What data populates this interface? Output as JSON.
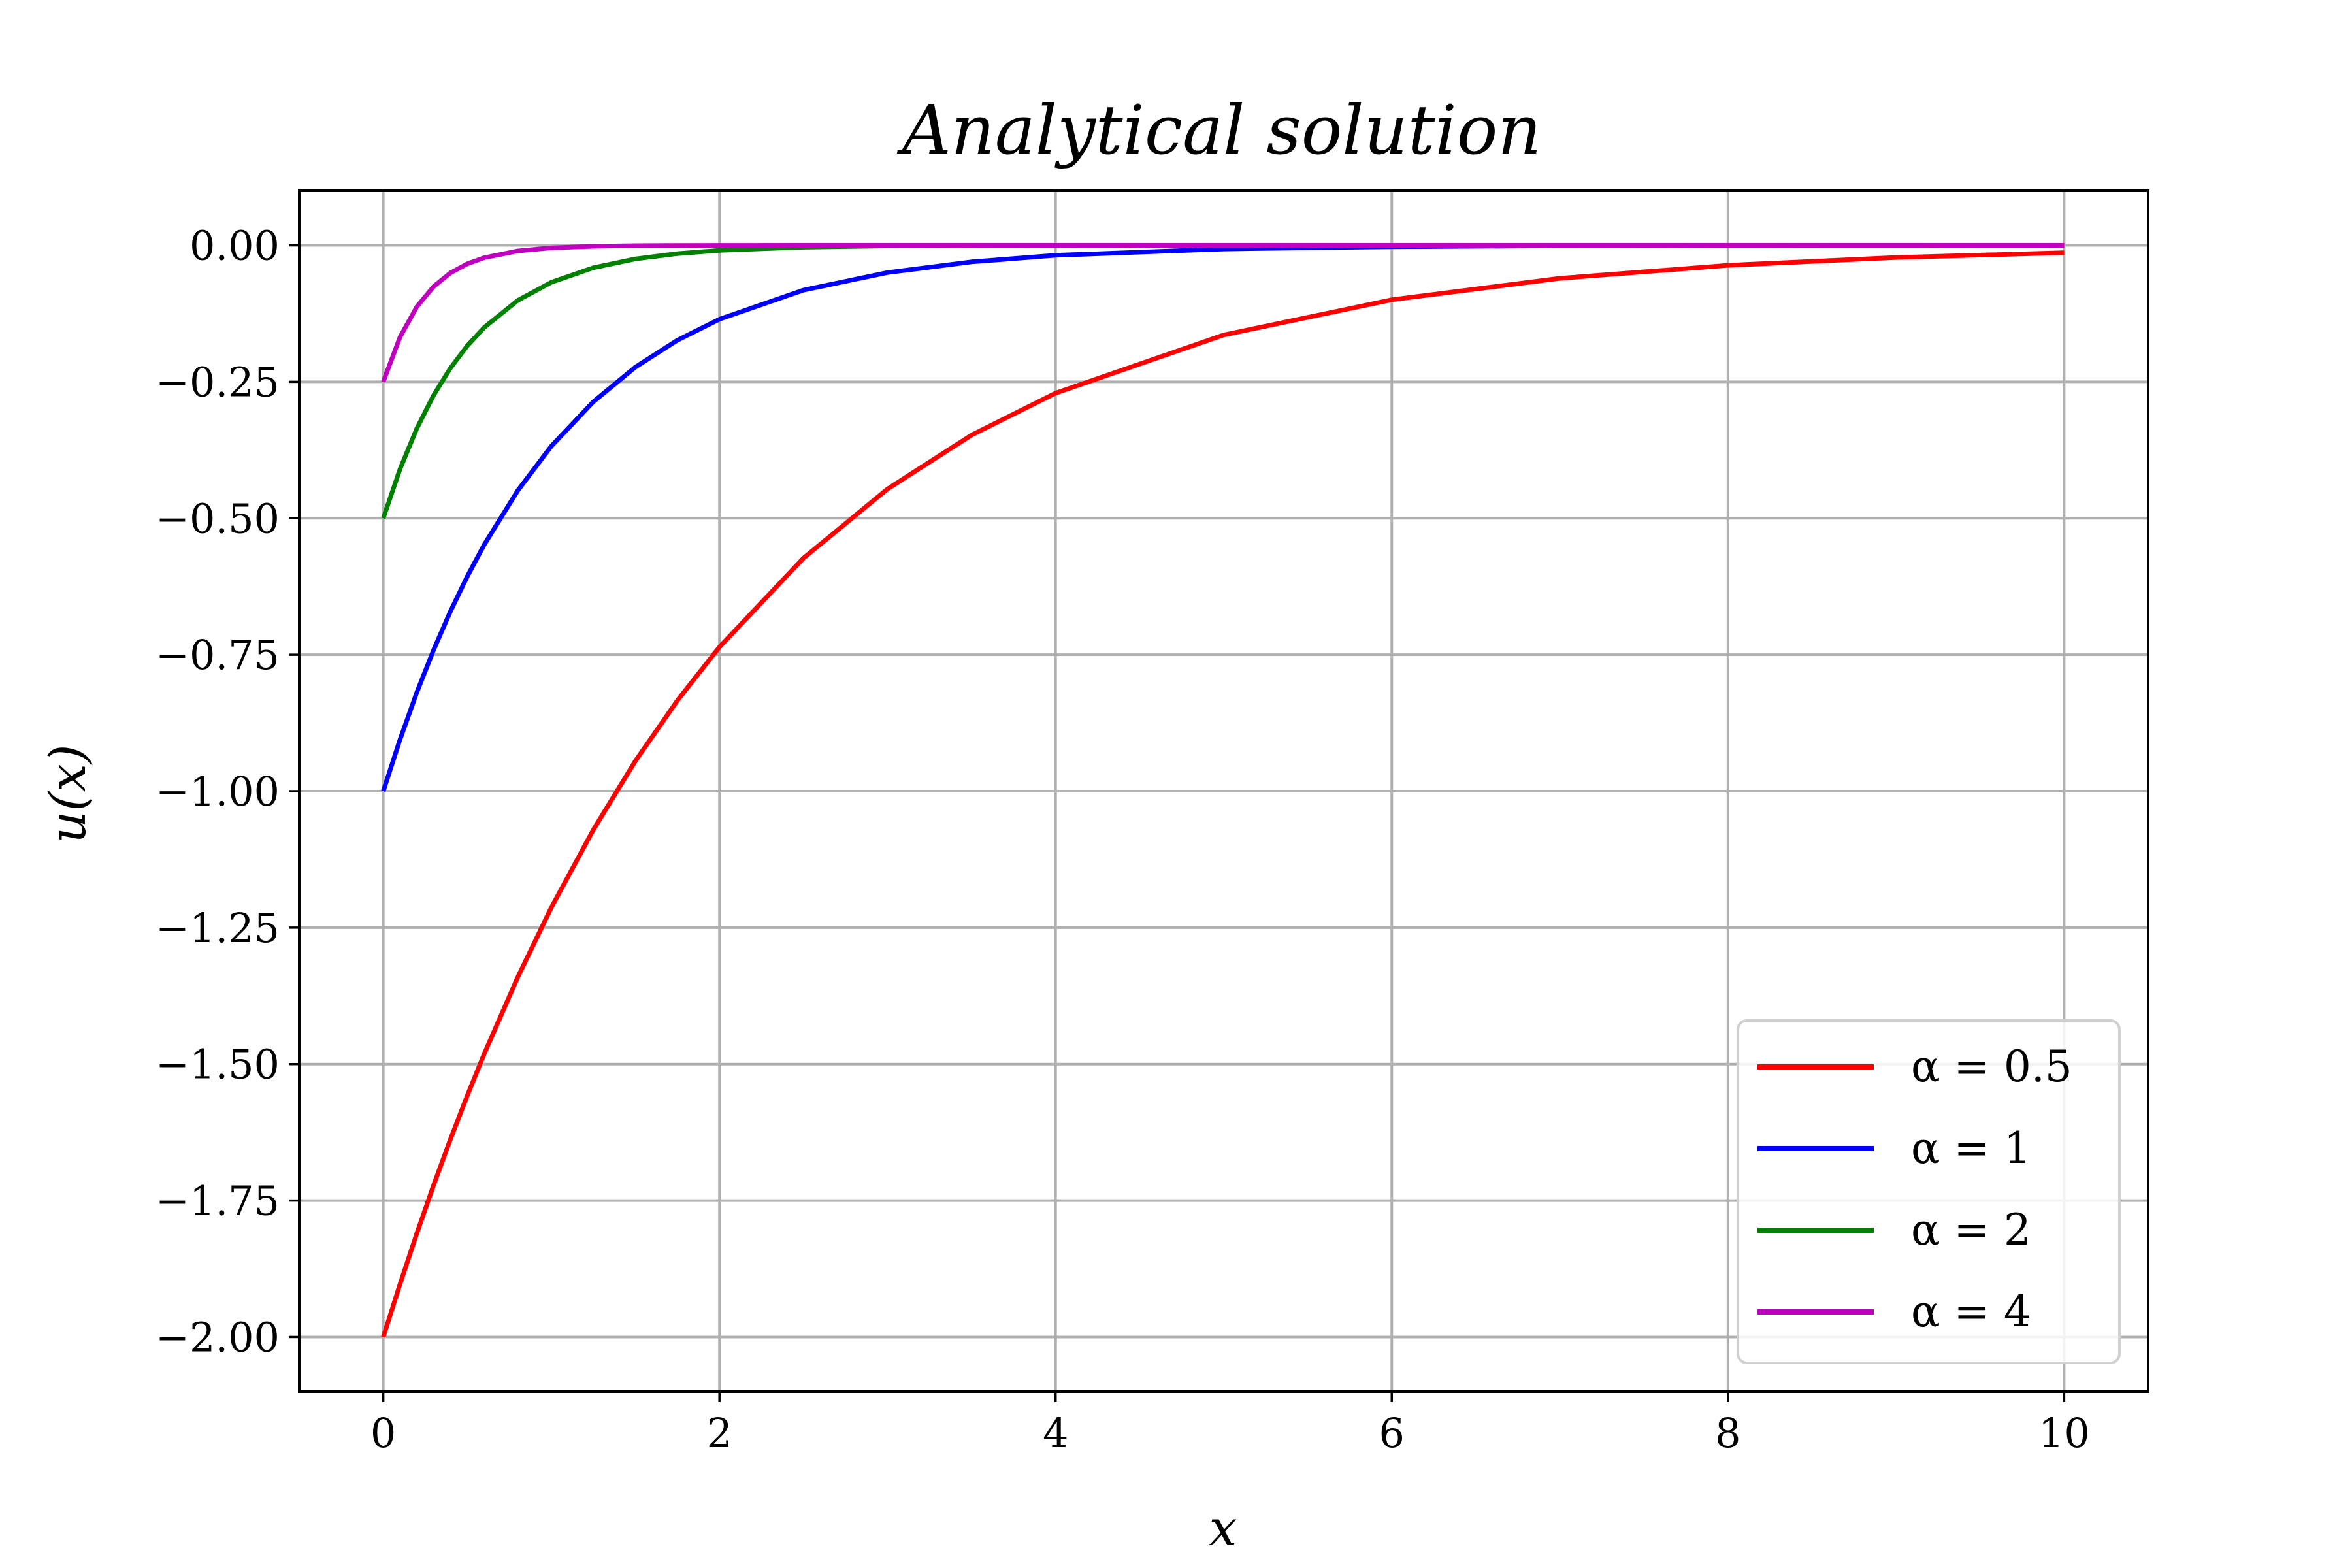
{
  "chart_data": {
    "type": "line",
    "title": "Analytical solution",
    "xlabel": "x",
    "ylabel": "u(x)",
    "xlim": [
      -0.5,
      10.5
    ],
    "ylim": [
      -2.1,
      0.1
    ],
    "xticks": [
      0,
      2,
      4,
      6,
      8,
      10
    ],
    "yticks": [
      0,
      -0.25,
      -0.5,
      -0.75,
      -1.0,
      -1.25,
      -1.5,
      -1.75,
      -2.0
    ],
    "xtick_labels": [
      "0",
      "2",
      "4",
      "6",
      "8",
      "10"
    ],
    "ytick_labels": [
      "0.00",
      "−0.25",
      "−0.50",
      "−0.75",
      "−1.00",
      "−1.25",
      "−1.50",
      "−1.75",
      "−2.00"
    ],
    "grid": true,
    "legend_position": "bottom-right",
    "x": [
      0,
      0.1,
      0.2,
      0.3,
      0.4,
      0.5,
      0.6,
      0.8,
      1.0,
      1.25,
      1.5,
      1.75,
      2.0,
      2.5,
      3.0,
      3.5,
      4.0,
      5.0,
      6.0,
      7.0,
      8.0,
      9.0,
      10.0
    ],
    "series": [
      {
        "name": "α = 0.5",
        "color": "#ff0000",
        "values": [
          -2.0,
          -1.9025,
          -1.8097,
          -1.7214,
          -1.6375,
          -1.5576,
          -1.4816,
          -1.3406,
          -1.2131,
          -1.0706,
          -0.9447,
          -0.8337,
          -0.7358,
          -0.573,
          -0.4463,
          -0.3476,
          -0.2707,
          -0.1642,
          -0.0996,
          -0.0604,
          -0.0366,
          -0.0222,
          -0.0135
        ]
      },
      {
        "name": "α = 1",
        "color": "#0000ff",
        "values": [
          -1.0,
          -0.9048,
          -0.8187,
          -0.7408,
          -0.6703,
          -0.6065,
          -0.5488,
          -0.4493,
          -0.3679,
          -0.2865,
          -0.2231,
          -0.1738,
          -0.1353,
          -0.0821,
          -0.0498,
          -0.0302,
          -0.0183,
          -0.0067,
          -0.0025,
          -0.0009,
          -0.0003,
          -0.0001,
          0.0
        ]
      },
      {
        "name": "α = 2",
        "color": "#008000",
        "values": [
          -0.5,
          -0.4094,
          -0.3352,
          -0.2744,
          -0.2247,
          -0.1839,
          -0.1506,
          -0.1009,
          -0.0677,
          -0.041,
          -0.0249,
          -0.0151,
          -0.0092,
          -0.0034,
          -0.0012,
          -0.0005,
          -0.0002,
          0.0,
          0.0,
          0.0,
          0.0,
          0.0,
          0.0
        ]
      },
      {
        "name": "α = 4",
        "color": "#bf00bf",
        "values": [
          -0.25,
          -0.1676,
          -0.1123,
          -0.0753,
          -0.0505,
          -0.0338,
          -0.0227,
          -0.0102,
          -0.0046,
          -0.0017,
          -0.0006,
          -0.0002,
          -0.0001,
          0.0,
          0.0,
          0.0,
          0.0,
          0.0,
          0.0,
          0.0,
          0.0,
          0.0,
          0.0
        ]
      }
    ]
  }
}
